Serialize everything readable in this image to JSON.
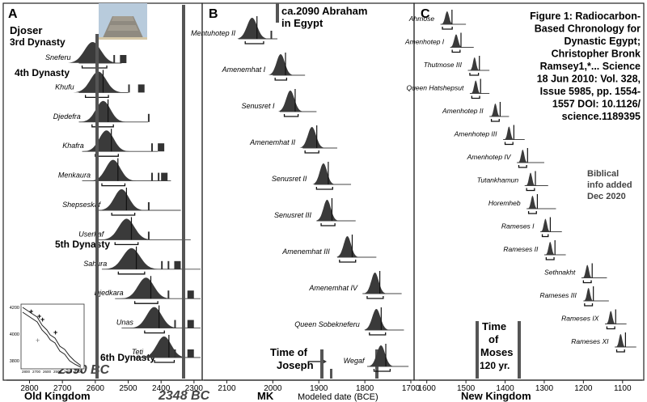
{
  "chart_data": [
    {
      "type": "density-ridges",
      "panel": "A",
      "xlim": [
        2870,
        2280
      ],
      "xticks": [
        2800,
        2700,
        2600,
        2500,
        2400,
        2300
      ],
      "xlabel": "Old Kingdom",
      "rows": [
        {
          "name": "Sneferu",
          "peak": 2608,
          "spread": 25,
          "label_range": [
            2640,
            2565
          ],
          "line_range": [
            2650,
            2520
          ],
          "extra": [
            2545,
            2525
          ]
        },
        {
          "name": "Khufu",
          "peak": 2591,
          "spread": 24,
          "label_range": [
            2630,
            2560
          ],
          "line_range": [
            2650,
            2500
          ],
          "extra": [
            2500,
            2470
          ]
        },
        {
          "name": "Djedefra",
          "peak": 2576,
          "spread": 22,
          "label_range": [
            2610,
            2545
          ],
          "line_range": [
            2650,
            2440
          ],
          "extra": [
            2440
          ]
        },
        {
          "name": "Khafra",
          "peak": 2566,
          "spread": 22,
          "label_range": [
            2600,
            2530
          ],
          "line_range": [
            2640,
            2410
          ],
          "extra": [
            2430,
            2410
          ]
        },
        {
          "name": "Menkaura",
          "peak": 2546,
          "spread": 22,
          "label_range": [
            2580,
            2510
          ],
          "line_range": [
            2640,
            2370
          ],
          "extra": [
            2430,
            2410,
            2400
          ]
        },
        {
          "name": "Shepseskaf",
          "peak": 2520,
          "spread": 22,
          "label_range": [
            2550,
            2480
          ],
          "line_range": [
            2600,
            2340
          ],
          "extra": [
            2440
          ]
        },
        {
          "name": "Userkaf",
          "peak": 2505,
          "spread": 24,
          "label_range": [
            2540,
            2470
          ],
          "line_range": [
            2590,
            2310
          ],
          "extra": [
            2440
          ]
        },
        {
          "name": "Sahura",
          "peak": 2490,
          "spread": 26,
          "label_range": [
            2530,
            2450
          ],
          "line_range": [
            2580,
            2280
          ],
          "extra": [
            2400,
            2380,
            2360
          ]
        },
        {
          "name": "Djedkara",
          "peak": 2446,
          "spread": 24,
          "label_range": [
            2480,
            2410
          ],
          "line_range": [
            2540,
            2280
          ],
          "extra": [
            2380,
            2320
          ]
        },
        {
          "name": "Unas",
          "peak": 2421,
          "spread": 23,
          "label_range": [
            2450,
            2390
          ],
          "line_range": [
            2520,
            2280
          ],
          "extra": [
            2360,
            2320
          ]
        },
        {
          "name": "Teti",
          "peak": 2391,
          "spread": 22,
          "label_range": [
            2420,
            2360
          ],
          "line_range": [
            2480,
            2280
          ],
          "extra": [
            2360,
            2320
          ]
        }
      ]
    },
    {
      "type": "density-ridges",
      "panel": "B",
      "xlim": [
        2150,
        1700
      ],
      "xticks": [
        2100,
        2000,
        1900,
        1800,
        1700
      ],
      "xlabel": "MK",
      "x_title": "Modeled date (BCE)",
      "rows": [
        {
          "name": "Mentuhotep II",
          "peak": 2045,
          "spread": 11,
          "label_range": [
            2060,
            2020
          ],
          "line_range": [
            2075,
            1990
          ],
          "extra": [
            2005
          ]
        },
        {
          "name": "Amenemhat I",
          "peak": 1983,
          "spread": 9,
          "label_range": [
            1995,
            1970
          ],
          "line_range": [
            2000,
            1930
          ]
        },
        {
          "name": "Senusret I",
          "peak": 1962,
          "spread": 9,
          "label_range": [
            1975,
            1945
          ],
          "line_range": [
            1985,
            1905
          ]
        },
        {
          "name": "Amenemhat II",
          "peak": 1915,
          "spread": 9,
          "label_range": [
            1930,
            1900
          ],
          "line_range": [
            1935,
            1860
          ]
        },
        {
          "name": "Senusret II",
          "peak": 1890,
          "spread": 8,
          "label_range": [
            1905,
            1870
          ],
          "line_range": [
            1910,
            1830
          ]
        },
        {
          "name": "Senusret III",
          "peak": 1882,
          "spread": 8,
          "label_range": [
            1895,
            1865
          ],
          "line_range": [
            1905,
            1820
          ]
        },
        {
          "name": "Amenemhat III",
          "peak": 1838,
          "spread": 8,
          "label_range": [
            1855,
            1820
          ],
          "line_range": [
            1860,
            1775
          ]
        },
        {
          "name": "Amenemhat IV",
          "peak": 1778,
          "spread": 8,
          "label_range": [
            1795,
            1760
          ],
          "line_range": [
            1805,
            1720
          ]
        },
        {
          "name": "Queen Sobekneferu",
          "peak": 1775,
          "spread": 9,
          "label_range": [
            1790,
            1755
          ],
          "line_range": [
            1800,
            1715
          ]
        },
        {
          "name": "Wegaf",
          "peak": 1765,
          "spread": 9,
          "label_range": [
            1780,
            1745
          ],
          "line_range": [
            1795,
            1705
          ]
        }
      ]
    },
    {
      "type": "density-ridges",
      "panel": "C",
      "xlim": [
        1620,
        1050
      ],
      "xticks": [
        1600,
        1500,
        1400,
        1300,
        1200,
        1100
      ],
      "xlabel": "New Kingdom",
      "rows": [
        {
          "name": "Ahmose",
          "peak": 1548,
          "spread": 5,
          "label_range": [
            1560,
            1535
          ],
          "line_range": [
            1565,
            1500
          ]
        },
        {
          "name": "Amenhotep I",
          "peak": 1525,
          "spread": 5,
          "label_range": [
            1535,
            1515
          ],
          "line_range": [
            1540,
            1480
          ]
        },
        {
          "name": "Thutmose III",
          "peak": 1478,
          "spread": 4,
          "label_range": [
            1490,
            1468
          ],
          "line_range": [
            1495,
            1440
          ]
        },
        {
          "name": "Queen Hatshepsut",
          "peak": 1475,
          "spread": 4,
          "label_range": [
            1485,
            1465
          ],
          "line_range": [
            1490,
            1440
          ]
        },
        {
          "name": "Amenhotep II",
          "peak": 1425,
          "spread": 4,
          "label_range": [
            1435,
            1415
          ],
          "line_range": [
            1440,
            1390
          ]
        },
        {
          "name": "Amenhotep III",
          "peak": 1390,
          "spread": 4,
          "label_range": [
            1400,
            1380
          ],
          "line_range": [
            1405,
            1350
          ]
        },
        {
          "name": "Amenhotep IV",
          "peak": 1355,
          "spread": 4,
          "label_range": [
            1365,
            1345
          ],
          "line_range": [
            1370,
            1300
          ]
        },
        {
          "name": "Tutankhamun",
          "peak": 1335,
          "spread": 4,
          "label_range": [
            1345,
            1325
          ],
          "line_range": [
            1350,
            1290
          ]
        },
        {
          "name": "Horemheb",
          "peak": 1330,
          "spread": 4,
          "label_range": [
            1340,
            1320
          ],
          "line_range": [
            1345,
            1270
          ]
        },
        {
          "name": "Rameses I",
          "peak": 1297,
          "spread": 4,
          "label_range": [
            1305,
            1290
          ],
          "line_range": [
            1310,
            1255
          ]
        },
        {
          "name": "Rameses II",
          "peak": 1285,
          "spread": 4,
          "label_range": [
            1295,
            1275
          ],
          "line_range": [
            1300,
            1245
          ]
        },
        {
          "name": "Sethnakht",
          "peak": 1190,
          "spread": 4,
          "label_range": [
            1200,
            1180
          ],
          "line_range": [
            1205,
            1140
          ]
        },
        {
          "name": "Rameses III",
          "peak": 1187,
          "spread": 4,
          "label_range": [
            1197,
            1177
          ],
          "line_range": [
            1200,
            1135
          ]
        },
        {
          "name": "Rameses IX",
          "peak": 1130,
          "spread": 4,
          "label_range": [
            1140,
            1120
          ],
          "line_range": [
            1145,
            1090
          ]
        },
        {
          "name": "Rameses XI",
          "peak": 1105,
          "spread": 4,
          "label_range": [
            1115,
            1095
          ],
          "line_range": [
            1120,
            1065
          ]
        }
      ]
    }
  ],
  "panel_letters": [
    "A",
    "B",
    "C"
  ],
  "annotations": {
    "djoser": "Djoser",
    "dynasty3": "3rd Dynasty",
    "dynasty4": "4th Dynasty",
    "dynasty5": "5th Dynasty",
    "dynasty6": "6th Dynasty",
    "date2590": "2590 BC",
    "date2348": "2348 BC",
    "abraham": [
      "ca.2090 Abraham",
      "in Egypt"
    ],
    "joseph": [
      "Time of",
      "Joseph"
    ],
    "moses": [
      "Time",
      "of",
      "Moses",
      "120 yr."
    ],
    "figure_caption": [
      "Figure 1: Radiocarbon-",
      "Based Chronology for",
      "Dynastic Egypt;",
      "Christopher Bronk",
      "Ramsey1,*... Science",
      "18 Jun 2010: Vol. 328,",
      "Issue 5985, pp. 1554-",
      "1557 DOI: 10.1126/",
      "science.1189395"
    ],
    "biblical": [
      "Biblical",
      "info added",
      "Dec 2020"
    ]
  },
  "inset": {
    "yticks": [
      4200,
      4000,
      3800
    ],
    "xticks": [
      2800,
      2700,
      2600,
      2500,
      2400,
      2300
    ]
  },
  "colors": {
    "fill": "#3a3a3a",
    "bar": "#555555",
    "text": "#111111",
    "photo_sky": "#b8cbdc",
    "photo_stone": "#8f8a80"
  }
}
